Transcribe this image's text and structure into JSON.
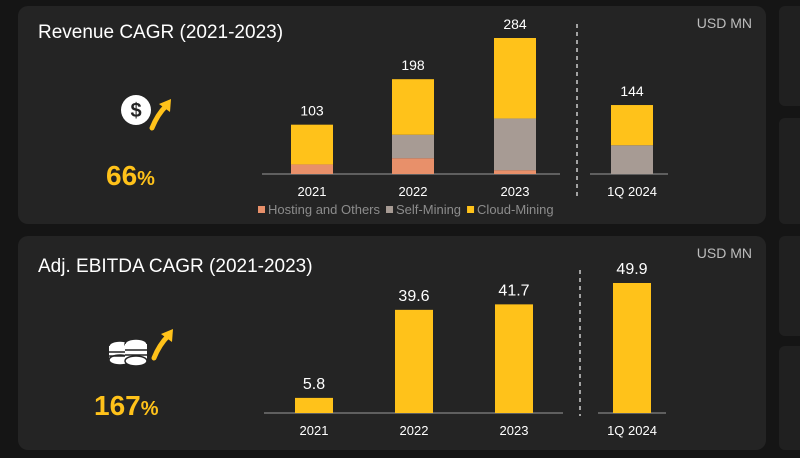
{
  "colors": {
    "hosting": "#e8906a",
    "self": "#a79b94",
    "cloud": "#ffc21a",
    "ebitda": "#ffc21a"
  },
  "revenue": {
    "title": "Revenue CAGR (2021-2023)",
    "unit": "USD MN",
    "cagr": {
      "value": "66",
      "suffix": "%"
    },
    "icon": "dollar-growth-icon",
    "legend": [
      "Hosting and Others",
      "Self-Mining",
      "Cloud-Mining"
    ]
  },
  "ebitda": {
    "title": "Adj. EBITDA CAGR (2021-2023)",
    "unit": "USD MN",
    "cagr": {
      "value": "167",
      "suffix": "%"
    },
    "icon": "coins-growth-icon"
  },
  "chart_data": [
    {
      "type": "bar",
      "stacked": true,
      "title": "Revenue CAGR (2021-2023)",
      "unit": "USD MN",
      "categories": [
        "2021",
        "2022",
        "2023",
        "1Q 2024"
      ],
      "totals": [
        103,
        198,
        284,
        144
      ],
      "series": [
        {
          "name": "Hosting and Others",
          "color": "#e8906a",
          "values": [
            20,
            33,
            8,
            0
          ]
        },
        {
          "name": "Self-Mining",
          "color": "#a79b94",
          "values": [
            0,
            49,
            108,
            60
          ]
        },
        {
          "name": "Cloud-Mining",
          "color": "#ffc21a",
          "values": [
            83,
            116,
            168,
            84
          ]
        }
      ],
      "legend_position": "bottom"
    },
    {
      "type": "bar",
      "title": "Adj. EBITDA CAGR (2021-2023)",
      "unit": "USD MN",
      "categories": [
        "2021",
        "2022",
        "2023",
        "1Q 2024"
      ],
      "values": [
        5.8,
        39.6,
        41.7,
        49.9
      ],
      "labels": [
        "5.8",
        "39.6",
        "41.7",
        "49.9"
      ]
    }
  ]
}
